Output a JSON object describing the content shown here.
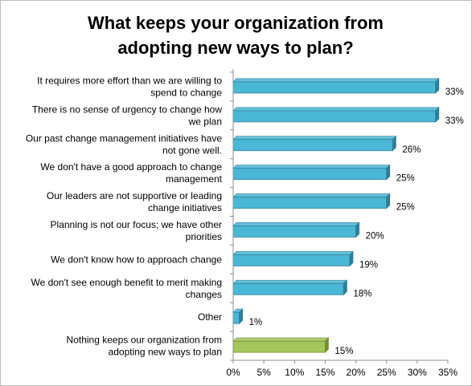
{
  "chart_data": {
    "type": "bar",
    "orientation": "horizontal",
    "title": "What keeps your organization from adopting new ways to plan?",
    "title_lines": [
      "What keeps your organization from",
      "adopting new ways to plan?"
    ],
    "categories": [
      [
        "It requires more effort than we are willing to",
        "spend to change"
      ],
      [
        "There is no sense of urgency to change how",
        "we plan"
      ],
      [
        "Our past change management initiatives have",
        "not gone well."
      ],
      [
        "We don't have a good approach to change",
        "management"
      ],
      [
        "Our leaders are not supportive or leading",
        "change initiatives"
      ],
      [
        "Planning is not our focus; we have other",
        "priorities"
      ],
      [
        "We don't know how to approach change"
      ],
      [
        "We don't see enough benefit to merit making",
        "changes"
      ],
      [
        "Other"
      ],
      [
        "Nothing keeps our organization from",
        "adopting new ways to plan"
      ]
    ],
    "values": [
      33,
      33,
      26,
      25,
      25,
      20,
      19,
      18,
      1,
      15
    ],
    "value_labels": [
      "33%",
      "33%",
      "26%",
      "25%",
      "25%",
      "20%",
      "19%",
      "18%",
      "1%",
      "15%"
    ],
    "xlim": [
      0,
      35
    ],
    "xticks": [
      0,
      5,
      10,
      15,
      20,
      25,
      30,
      35
    ],
    "xtick_labels": [
      "0%",
      "5%",
      "10%",
      "15%",
      "20%",
      "25%",
      "30%",
      "35%"
    ],
    "xlabel": "",
    "ylabel": "",
    "grid": false,
    "legend": "none",
    "colors": {
      "bar": "#4bb7d6",
      "bar_edge": "#2c7f98",
      "highlight_bar": "#a4c65a",
      "highlight_edge": "#6f8f32",
      "axis": "#8c8c8c"
    },
    "highlight_index": 9
  }
}
